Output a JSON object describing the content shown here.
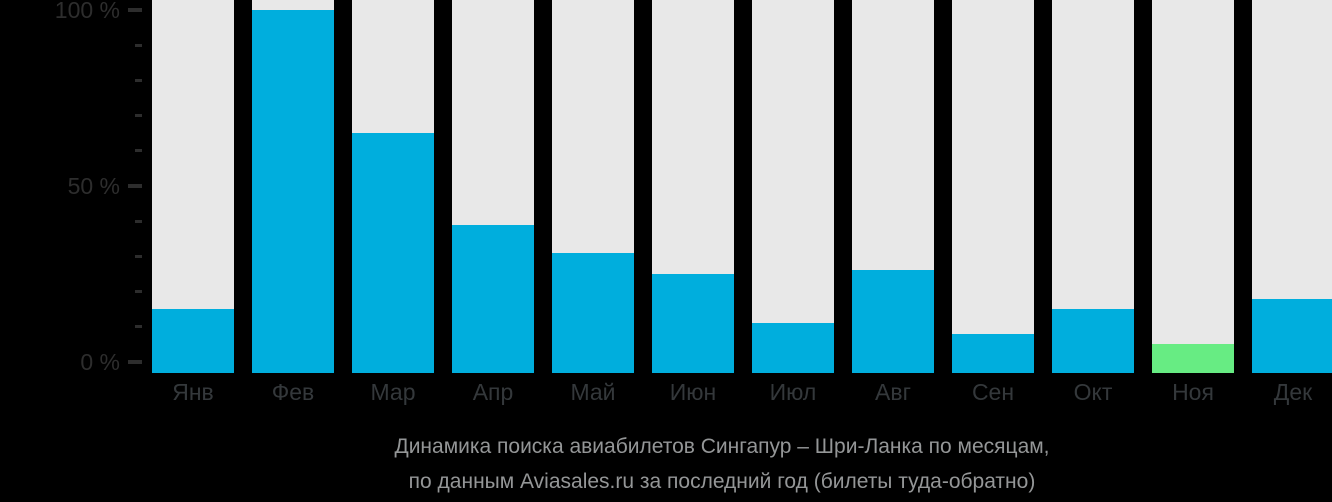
{
  "chart_data": {
    "type": "bar",
    "categories": [
      "Янв",
      "Фев",
      "Мар",
      "Апр",
      "Май",
      "Июн",
      "Июл",
      "Авг",
      "Сен",
      "Окт",
      "Ноя",
      "Дек"
    ],
    "values": [
      15,
      100,
      65,
      39,
      31,
      25,
      11,
      26,
      8,
      15,
      5,
      18
    ],
    "unit": "%",
    "highlight_index": 10,
    "y_tick_labels": [
      "0 %",
      "50 %",
      "100 %"
    ],
    "y_major_tick_values": [
      0,
      50,
      100
    ],
    "y_minor_tick_step": 10,
    "ylim": [
      0,
      100
    ],
    "grid": false,
    "legend": false,
    "title": "Динамика поиска авиабилетов Сингапур – Шри-Ланка по месяцам, по данным Aviasales.ru за последний год (билеты туда-обратно)",
    "caption_lines": [
      "Динамика поиска авиабилетов Сингапур – Шри-Ланка по месяцам,",
      "по данным Aviasales.ru за последний год (билеты туда-обратно)"
    ],
    "colors": {
      "background": "#000000",
      "bar_track": "#e8e8e8",
      "bar": "#00aedd",
      "highlight_bar": "#67ec83",
      "axis_text": "#2d2d2d",
      "tick": "#2d2d2d",
      "month_text": "#34383b",
      "caption_text": "#949697"
    }
  }
}
